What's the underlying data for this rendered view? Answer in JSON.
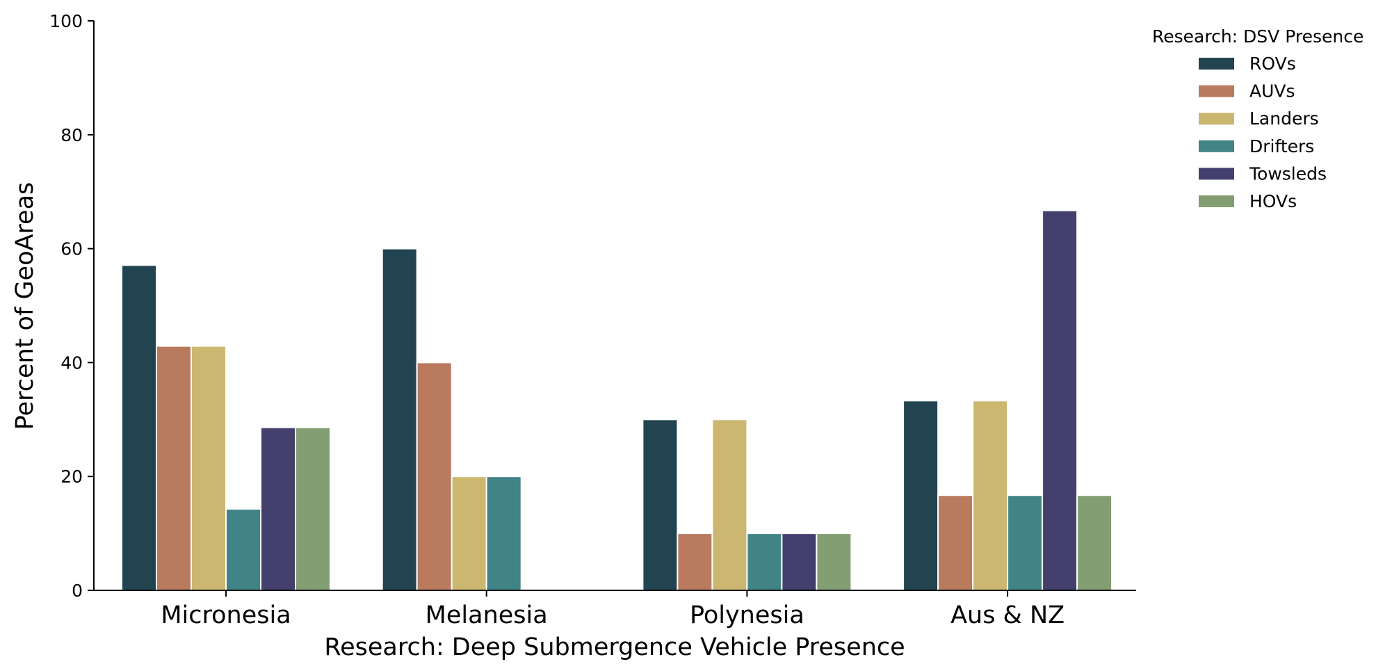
{
  "chart_data": {
    "type": "bar",
    "title": "",
    "xlabel": "Research: Deep Submergence Vehicle Presence",
    "ylabel": "Percent of GeoAreas",
    "ylim": [
      0,
      100
    ],
    "yticks": [
      "0",
      "20",
      "40",
      "60",
      "80",
      "100"
    ],
    "grid": false,
    "legend": {
      "title": "Research: DSV Presence",
      "placement": "top-right"
    },
    "categories": [
      "Micronesia",
      "Melanesia",
      "Polynesia",
      "Aus & NZ"
    ],
    "series": [
      {
        "name": "ROVs",
        "color": "#224450",
        "values": [
          57.1,
          60,
          30,
          33.3
        ]
      },
      {
        "name": "AUVs",
        "color": "#b97a5d",
        "values": [
          42.9,
          40,
          10,
          16.7
        ]
      },
      {
        "name": "Landers",
        "color": "#ccb771",
        "values": [
          42.9,
          20,
          30,
          33.3
        ]
      },
      {
        "name": "Drifters",
        "color": "#418488",
        "values": [
          14.3,
          20,
          10,
          16.7
        ]
      },
      {
        "name": "Towsleds",
        "color": "#43406d",
        "values": [
          28.6,
          0,
          10,
          66.7
        ]
      },
      {
        "name": "HOVs",
        "color": "#829e72",
        "values": [
          28.6,
          0,
          10,
          16.7
        ]
      }
    ]
  }
}
